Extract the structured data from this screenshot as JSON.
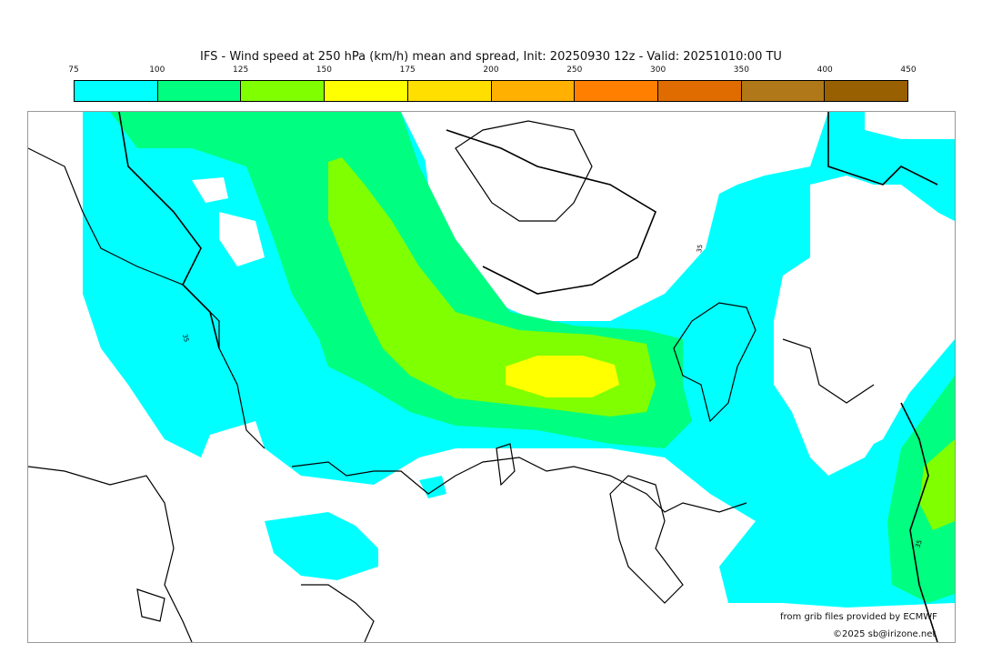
{
  "title": "IFS - Wind speed at 250 hPa (km/h) mean and spread, Init: 20250930 12z - Valid: 20251010:00 TU",
  "colorbar": {
    "ticks": [
      "75",
      "100",
      "125",
      "150",
      "175",
      "200",
      "250",
      "300",
      "350",
      "400",
      "450"
    ],
    "colors": [
      "#00ffff",
      "#00ff80",
      "#80ff00",
      "#ffff00",
      "#ffdf00",
      "#ffb000",
      "#ff8000",
      "#e06c00",
      "#b07818",
      "#986000"
    ]
  },
  "map": {
    "contour_label": "35"
  },
  "credits": {
    "source": "from grib files provided by ECMWF",
    "copyright": "©2025 sb@irizone.net"
  }
}
